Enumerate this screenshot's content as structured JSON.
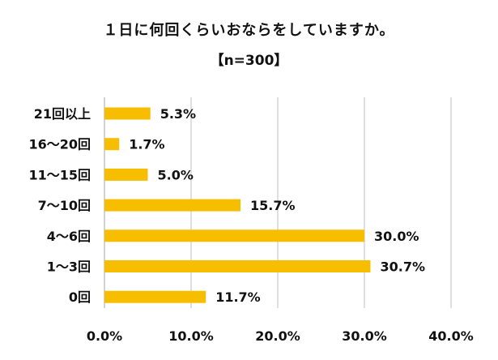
{
  "chart_data": {
    "type": "bar",
    "orientation": "horizontal",
    "title": "１日に何回くらいおならをしていますか。",
    "subtitle": "【n=300】",
    "categories": [
      "21回以上",
      "16～20回",
      "11～15回",
      "7～10回",
      "4～6回",
      "1～3回",
      "0回"
    ],
    "values": [
      5.3,
      1.7,
      5.0,
      15.7,
      30.0,
      30.7,
      11.7
    ],
    "value_labels": [
      "5.3%",
      "1.7%",
      "5.0%",
      "15.7%",
      "30.0%",
      "30.7%",
      "11.7%"
    ],
    "xlim": [
      0,
      40
    ],
    "xticks": [
      0,
      10,
      20,
      30,
      40
    ],
    "xtick_labels": [
      "0.0%",
      "10.0%",
      "20.0%",
      "30.0%",
      "40.0%"
    ],
    "grid": "vertical",
    "bar_color": "#F7BE00",
    "grid_color": "#BFBFBF"
  }
}
